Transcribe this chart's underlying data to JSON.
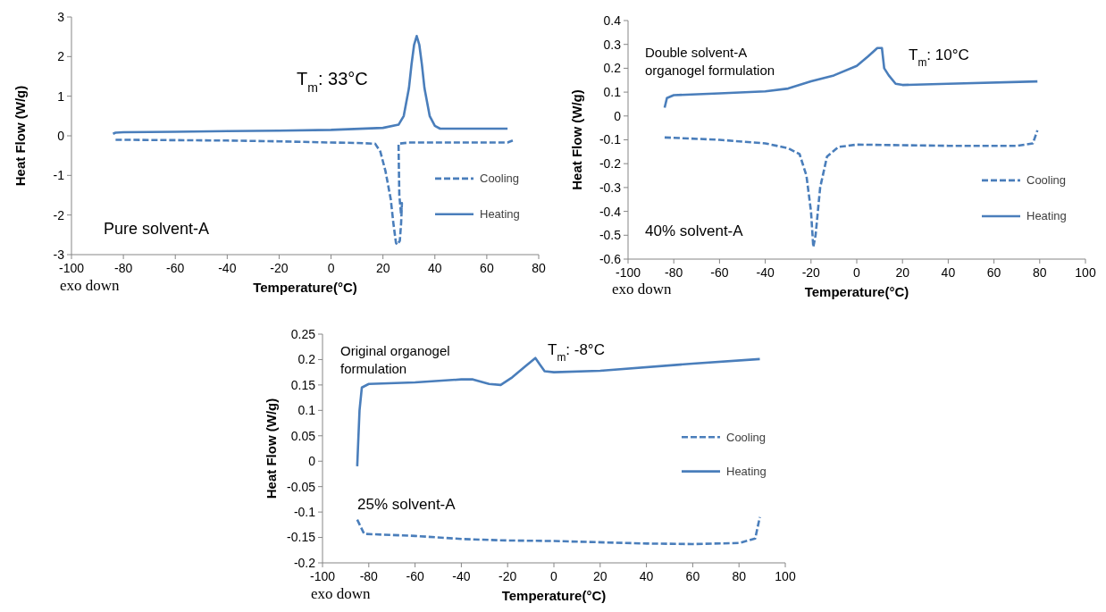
{
  "chart_data": [
    {
      "type": "line",
      "xlabel": "Temperature(°C)",
      "ylabel": "Heat Flow (W/g)",
      "xlim": [
        -100,
        80
      ],
      "xticks": [
        -100,
        -80,
        -60,
        -40,
        -20,
        0,
        20,
        40,
        60,
        80
      ],
      "ylim": [
        -3,
        3
      ],
      "yticks": [
        -3,
        -2,
        -1,
        0,
        1,
        2,
        3
      ],
      "legend": "right",
      "grid": false,
      "marker": "none",
      "annotations": [
        "T$_{m}$: 33°C",
        "Pure solvent-A",
        "exo down"
      ],
      "series": [
        {
          "name": "Cooling",
          "color": "#4a7ebb",
          "line_style": "dashed",
          "x": [
            -83,
            -60,
            -40,
            -20,
            0,
            10,
            17,
            19,
            21,
            23,
            24,
            25,
            25.5,
            26.5,
            27,
            27.3,
            27,
            26.3,
            26,
            30,
            50,
            68,
            70
          ],
          "values": [
            -0.1,
            -0.11,
            -0.12,
            -0.14,
            -0.17,
            -0.18,
            -0.2,
            -0.4,
            -0.9,
            -1.6,
            -2.2,
            -2.7,
            -2.75,
            -2.65,
            -2.2,
            -1.7,
            -2.0,
            -1.5,
            -0.2,
            -0.17,
            -0.17,
            -0.17,
            -0.12
          ]
        },
        {
          "name": "Heating",
          "color": "#4a7ebb",
          "line_style": "solid",
          "x": [
            -84,
            -83,
            -80,
            -60,
            -40,
            -20,
            0,
            20,
            26,
            28,
            30,
            31,
            32,
            33,
            34,
            35,
            36,
            38,
            40,
            42,
            50,
            68
          ],
          "values": [
            0.05,
            0.08,
            0.09,
            0.1,
            0.12,
            0.13,
            0.15,
            0.2,
            0.28,
            0.5,
            1.2,
            1.8,
            2.3,
            2.52,
            2.3,
            1.8,
            1.2,
            0.5,
            0.25,
            0.18,
            0.18,
            0.18
          ]
        }
      ]
    },
    {
      "type": "line",
      "xlabel": "Temperature(°C)",
      "ylabel": "Heat Flow (W/g)",
      "xlim": [
        -100,
        100
      ],
      "xticks": [
        -100,
        -80,
        -60,
        -40,
        -20,
        0,
        20,
        40,
        60,
        80,
        100
      ],
      "ylim": [
        -0.6,
        0.4
      ],
      "yticks": [
        -0.6,
        -0.5,
        -0.4,
        -0.3,
        -0.2,
        -0.1,
        0,
        0.1,
        0.2,
        0.3,
        0.4
      ],
      "legend": "right",
      "grid": false,
      "marker": "none",
      "annotations": [
        "Double solvent-A\norganogel  formulation",
        "T$_{m}$: 10°C",
        "40% solvent-A",
        "exo down"
      ],
      "series": [
        {
          "name": "Cooling",
          "color": "#4a7ebb",
          "line_style": "dashed",
          "x": [
            -84,
            -60,
            -40,
            -30,
            -25,
            -22,
            -20,
            -19,
            -18,
            -16,
            -13,
            -8,
            0,
            40,
            70,
            77,
            79
          ],
          "values": [
            -0.09,
            -0.1,
            -0.115,
            -0.135,
            -0.16,
            -0.25,
            -0.4,
            -0.55,
            -0.5,
            -0.3,
            -0.17,
            -0.13,
            -0.12,
            -0.125,
            -0.125,
            -0.115,
            -0.06
          ]
        },
        {
          "name": "Heating",
          "color": "#4a7ebb",
          "line_style": "solid",
          "x": [
            -84,
            -83,
            -80,
            -60,
            -40,
            -30,
            -20,
            -10,
            0,
            5,
            9,
            11,
            12,
            14,
            17,
            20,
            40,
            79
          ],
          "values": [
            0.035,
            0.075,
            0.087,
            0.095,
            0.103,
            0.115,
            0.145,
            0.17,
            0.21,
            0.25,
            0.285,
            0.285,
            0.2,
            0.17,
            0.135,
            0.13,
            0.135,
            0.145
          ]
        }
      ]
    },
    {
      "type": "line",
      "xlabel": "Temperature(°C)",
      "ylabel": "Heat Flow (W/g)",
      "xlim": [
        -100,
        100
      ],
      "xticks": [
        -100,
        -80,
        -60,
        -40,
        -20,
        0,
        20,
        40,
        60,
        80,
        100
      ],
      "ylim": [
        -0.2,
        0.25
      ],
      "yticks": [
        -0.2,
        -0.15,
        -0.1,
        -0.05,
        0,
        0.05,
        0.1,
        0.15,
        0.2,
        0.25
      ],
      "legend": "right",
      "grid": false,
      "marker": "none",
      "annotations": [
        "Original organogel\nformulation",
        "T$_{m}$: -8°C",
        "25% solvent-A",
        "exo down"
      ],
      "series": [
        {
          "name": "Cooling",
          "color": "#4a7ebb",
          "line_style": "dashed",
          "x": [
            -85,
            -82,
            -60,
            -40,
            -20,
            0,
            40,
            60,
            80,
            87,
            89
          ],
          "values": [
            -0.115,
            -0.143,
            -0.147,
            -0.153,
            -0.156,
            -0.157,
            -0.162,
            -0.163,
            -0.161,
            -0.152,
            -0.11
          ]
        },
        {
          "name": "Heating",
          "color": "#4a7ebb",
          "line_style": "solid",
          "x": [
            -85,
            -84,
            -83,
            -80,
            -60,
            -40,
            -35,
            -28,
            -23,
            -18,
            -12,
            -8,
            -6,
            -4,
            0,
            20,
            60,
            89
          ],
          "values": [
            -0.01,
            0.1,
            0.145,
            0.152,
            0.155,
            0.161,
            0.161,
            0.152,
            0.15,
            0.165,
            0.188,
            0.203,
            0.19,
            0.177,
            0.175,
            0.178,
            0.192,
            0.201
          ]
        }
      ]
    }
  ]
}
